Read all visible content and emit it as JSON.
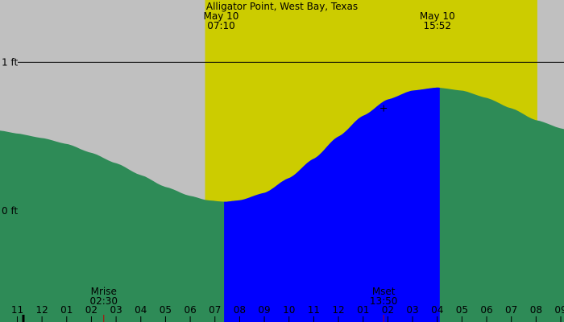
{
  "chart_data": {
    "type": "area",
    "title": "Alligator Point, West Bay, Texas",
    "xlabel": "",
    "ylabel": "",
    "x_unit": "hours since 00:00 May 10",
    "x_range": [
      -1.7,
      21.13
    ],
    "y_range": [
      -0.75,
      1.42
    ],
    "y_ticks": [
      {
        "value": 1,
        "label": "1 ft"
      },
      {
        "value": 0,
        "label": "0 ft"
      }
    ],
    "x_ticks": [
      {
        "value": -1,
        "label": "11"
      },
      {
        "value": 0,
        "label": "12"
      },
      {
        "value": 1,
        "label": "01"
      },
      {
        "value": 2,
        "label": "02"
      },
      {
        "value": 3,
        "label": "03"
      },
      {
        "value": 4,
        "label": "04"
      },
      {
        "value": 5,
        "label": "05"
      },
      {
        "value": 6,
        "label": "06"
      },
      {
        "value": 7,
        "label": "07"
      },
      {
        "value": 8,
        "label": "08"
      },
      {
        "value": 9,
        "label": "09"
      },
      {
        "value": 10,
        "label": "10"
      },
      {
        "value": 11,
        "label": "11"
      },
      {
        "value": 12,
        "label": "12"
      },
      {
        "value": 13,
        "label": "01"
      },
      {
        "value": 14,
        "label": "02"
      },
      {
        "value": 15,
        "label": "03"
      },
      {
        "value": 16,
        "label": "04"
      },
      {
        "value": 17,
        "label": "05"
      },
      {
        "value": 18,
        "label": "06"
      },
      {
        "value": 19,
        "label": "07"
      },
      {
        "value": 20,
        "label": "08"
      },
      {
        "value": 21,
        "label": "09"
      }
    ],
    "tide_curve": [
      {
        "x": -1.7,
        "y": 0.54
      },
      {
        "x": -1.0,
        "y": 0.52
      },
      {
        "x": 0.0,
        "y": 0.49
      },
      {
        "x": 1.0,
        "y": 0.45
      },
      {
        "x": 2.0,
        "y": 0.39
      },
      {
        "x": 3.0,
        "y": 0.32
      },
      {
        "x": 4.0,
        "y": 0.24
      },
      {
        "x": 5.0,
        "y": 0.16
      },
      {
        "x": 6.0,
        "y": 0.1
      },
      {
        "x": 6.7,
        "y": 0.07
      },
      {
        "x": 7.4,
        "y": 0.06
      },
      {
        "x": 8.0,
        "y": 0.07
      },
      {
        "x": 9.0,
        "y": 0.12
      },
      {
        "x": 10.0,
        "y": 0.22
      },
      {
        "x": 11.0,
        "y": 0.35
      },
      {
        "x": 12.0,
        "y": 0.5
      },
      {
        "x": 13.0,
        "y": 0.64
      },
      {
        "x": 14.0,
        "y": 0.75
      },
      {
        "x": 15.0,
        "y": 0.81
      },
      {
        "x": 16.0,
        "y": 0.83
      },
      {
        "x": 17.0,
        "y": 0.81
      },
      {
        "x": 18.0,
        "y": 0.76
      },
      {
        "x": 19.0,
        "y": 0.69
      },
      {
        "x": 20.0,
        "y": 0.61
      },
      {
        "x": 21.13,
        "y": 0.55
      }
    ],
    "rising_interval": [
      7.37,
      16.1
    ],
    "daylight": {
      "start": 6.6,
      "end": 20.05
    },
    "events": [
      {
        "date": "May 10",
        "time": "07:10",
        "x": 6.6
      },
      {
        "date": "May 10",
        "time": "15:52",
        "x": 15.35
      }
    ],
    "moon_events": [
      {
        "label": "Mrise",
        "time": "02:30",
        "x": 2.5
      },
      {
        "label": "Mset",
        "time": "13:50",
        "x": 13.83
      }
    ],
    "current_marker": {
      "x": 13.83,
      "y": 0.69
    },
    "current_time_x": 14.0,
    "colors": {
      "background": "#c0c0c0",
      "daylight": "#cccc00",
      "tide": "#2e8b57",
      "rising_tide": "#0000ff",
      "line": "#000000",
      "moon_tick": "#c00000"
    }
  }
}
